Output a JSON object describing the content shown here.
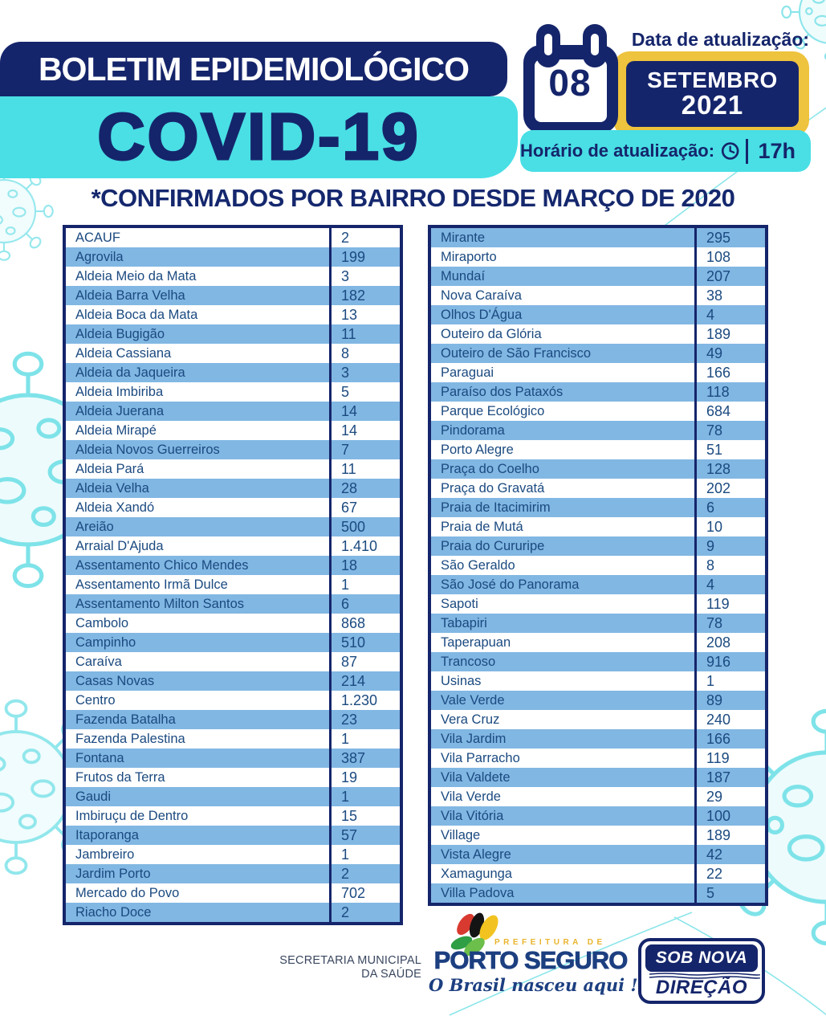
{
  "header": {
    "title": "BOLETIM EPIDEMIOLÓGICO",
    "subtitle": "COVID-19",
    "date_label": "Data de atualização:",
    "date_day": "08",
    "date_month": "SETEMBRO",
    "date_year": "2021",
    "time_label": "Horário de atualização:",
    "time_value": "17h"
  },
  "section_title": "*CONFIRMADOS POR BAIRRO DESDE MARÇO DE 2020",
  "table_left": {
    "first_row_shade": "white",
    "rows": [
      {
        "name": "ACAUF",
        "value": "2"
      },
      {
        "name": "Agrovila",
        "value": "199"
      },
      {
        "name": "Aldeia Meio da Mata",
        "value": "3"
      },
      {
        "name": "Aldeia Barra Velha",
        "value": "182"
      },
      {
        "name": "Aldeia Boca da Mata",
        "value": "13"
      },
      {
        "name": "Aldeia Bugigão",
        "value": "11"
      },
      {
        "name": "Aldeia Cassiana",
        "value": "8"
      },
      {
        "name": "Aldeia da Jaqueira",
        "value": "3"
      },
      {
        "name": "Aldeia Imbiriba",
        "value": "5"
      },
      {
        "name": "Aldeia Juerana",
        "value": "14"
      },
      {
        "name": "Aldeia Mirapé",
        "value": "14"
      },
      {
        "name": "Aldeia Novos Guerreiros",
        "value": "7"
      },
      {
        "name": "Aldeia Pará",
        "value": "11"
      },
      {
        "name": "Aldeia Velha",
        "value": "28"
      },
      {
        "name": "Aldeia Xandó",
        "value": "67"
      },
      {
        "name": "Areião",
        "value": "500"
      },
      {
        "name": "Arraial D'Ajuda",
        "value": "1.410"
      },
      {
        "name": "Assentamento Chico Mendes",
        "value": "18"
      },
      {
        "name": "Assentamento Irmã Dulce",
        "value": "1"
      },
      {
        "name": "Assentamento Milton Santos",
        "value": "6"
      },
      {
        "name": "Cambolo",
        "value": "868"
      },
      {
        "name": "Campinho",
        "value": "510"
      },
      {
        "name": "Caraíva",
        "value": "87"
      },
      {
        "name": "Casas Novas",
        "value": "214"
      },
      {
        "name": "Centro",
        "value": "1.230"
      },
      {
        "name": "Fazenda Batalha",
        "value": "23"
      },
      {
        "name": "Fazenda Palestina",
        "value": "1"
      },
      {
        "name": "Fontana",
        "value": "387"
      },
      {
        "name": "Frutos da Terra",
        "value": "19"
      },
      {
        "name": "Gaudi",
        "value": "1"
      },
      {
        "name": "Imbiruçu de Dentro",
        "value": "15"
      },
      {
        "name": "Itaporanga",
        "value": "57"
      },
      {
        "name": "Jambreiro",
        "value": "1"
      },
      {
        "name": "Jardim Porto",
        "value": "2"
      },
      {
        "name": "Mercado do Povo",
        "value": "702"
      },
      {
        "name": "Riacho Doce",
        "value": "2"
      }
    ]
  },
  "table_right": {
    "first_row_shade": "blue",
    "rows": [
      {
        "name": "Mirante",
        "value": "295"
      },
      {
        "name": "Miraporto",
        "value": "108"
      },
      {
        "name": "Mundaí",
        "value": "207"
      },
      {
        "name": "Nova Caraíva",
        "value": "38"
      },
      {
        "name": "Olhos D'Água",
        "value": "4"
      },
      {
        "name": "Outeiro da Glória",
        "value": "189"
      },
      {
        "name": "Outeiro de São Francisco",
        "value": "49"
      },
      {
        "name": "Paraguai",
        "value": "166"
      },
      {
        "name": "Paraíso dos Pataxós",
        "value": "118"
      },
      {
        "name": "Parque Ecológico",
        "value": "684"
      },
      {
        "name": "Pindorama",
        "value": "78"
      },
      {
        "name": "Porto Alegre",
        "value": "51"
      },
      {
        "name": "Praça do Coelho",
        "value": "128"
      },
      {
        "name": "Praça do Gravatá",
        "value": "202"
      },
      {
        "name": "Praia de Itacimirim",
        "value": "6"
      },
      {
        "name": "Praia de Mutá",
        "value": "10"
      },
      {
        "name": "Praia do Cururipe",
        "value": "9"
      },
      {
        "name": "São Geraldo",
        "value": "8"
      },
      {
        "name": "São José do Panorama",
        "value": "4"
      },
      {
        "name": "Sapoti",
        "value": "119"
      },
      {
        "name": "Tabapiri",
        "value": "78"
      },
      {
        "name": "Taperapuan",
        "value": "208"
      },
      {
        "name": "Trancoso",
        "value": "916"
      },
      {
        "name": "Usinas",
        "value": "1"
      },
      {
        "name": "Vale Verde",
        "value": "89"
      },
      {
        "name": "Vera Cruz",
        "value": "240"
      },
      {
        "name": "Vila Jardim",
        "value": "166"
      },
      {
        "name": "Vila Parracho",
        "value": "119"
      },
      {
        "name": "Vila Valdete",
        "value": "187"
      },
      {
        "name": "Vila Verde",
        "value": "29"
      },
      {
        "name": "Vila Vitória",
        "value": "100"
      },
      {
        "name": "Village",
        "value": "189"
      },
      {
        "name": "Vista Alegre",
        "value": "42"
      },
      {
        "name": "Xamagunga",
        "value": "22"
      },
      {
        "name": "Villa Padova",
        "value": "5"
      }
    ]
  },
  "footer": {
    "secretaria_line1": "SECRETARIA MUNICIPAL",
    "secretaria_line2": "DA SAÚDE",
    "logo_small": "PREFEITURA DE",
    "logo_name": "PORTO SEGURO",
    "logo_tagline": "O Brasil nasceu aqui !",
    "badge_line1": "SOB NOVA",
    "badge_line2": "DIREÇÃO"
  },
  "colors": {
    "navy": "#15256b",
    "turquoise": "#49dfe5",
    "yellow": "#eec33d",
    "row_blue": "#81b7e3",
    "table_text": "#1b4a80",
    "watermark_cyan": "#7ee3e9"
  }
}
